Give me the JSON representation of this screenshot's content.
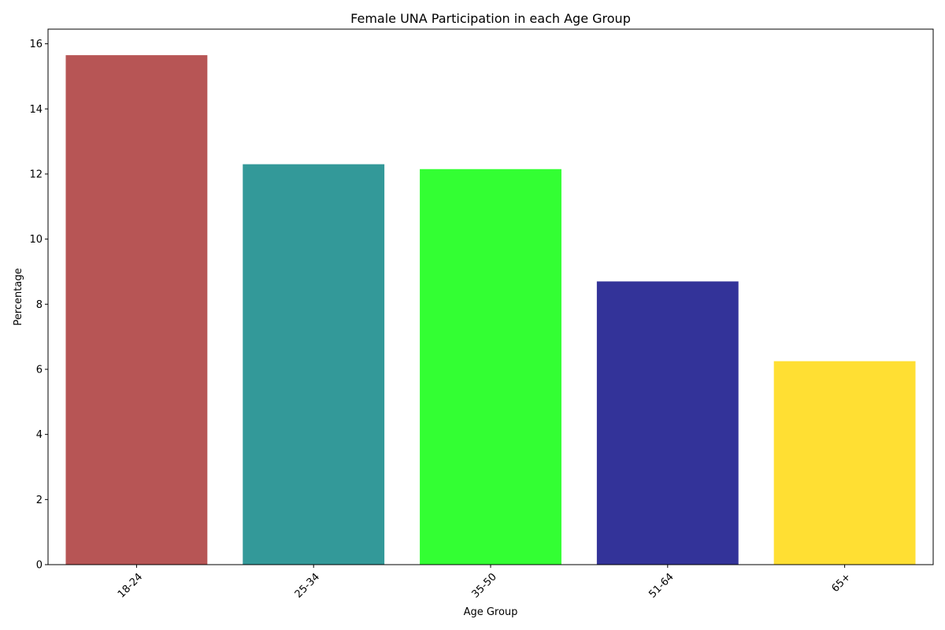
{
  "chart_data": {
    "type": "bar",
    "title": "Female UNA Participation in each Age Group",
    "xlabel": "Age Group",
    "ylabel": "Percentage",
    "categories": [
      "18-24",
      "25-34",
      "35-50",
      "51-64",
      "65+"
    ],
    "values": [
      15.65,
      12.3,
      12.15,
      8.7,
      6.25
    ],
    "colors": [
      "#a52a2a",
      "#008080",
      "#00ff00",
      "#000080",
      "#ffd700"
    ],
    "ylim": [
      0,
      16.45
    ],
    "yticks": [
      0,
      2,
      4,
      6,
      8,
      10,
      12,
      14,
      16
    ],
    "xtick_rotation": 45,
    "grid": false,
    "legend": "none"
  }
}
